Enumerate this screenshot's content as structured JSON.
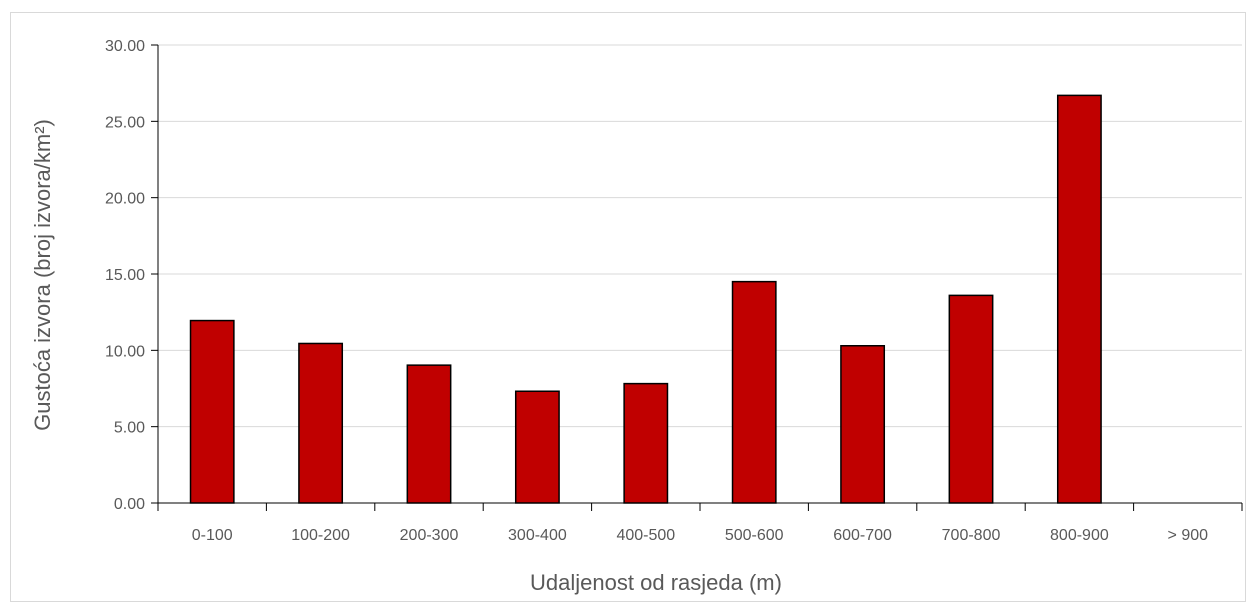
{
  "chart_data": {
    "type": "bar",
    "title": "",
    "xlabel": "Udaljenost od rasjeda (m)",
    "ylabel": "Gustoća izvora (broj izvora/km²)",
    "categories": [
      "0-100",
      "100-200",
      "200-300",
      "300-400",
      "400-500",
      "500-600",
      "600-700",
      "700-800",
      "800-900",
      "> 900"
    ],
    "values": [
      11.95,
      10.45,
      9.03,
      7.32,
      7.82,
      14.5,
      10.3,
      13.6,
      26.7,
      0
    ],
    "ylim": [
      0,
      30
    ],
    "yticks": [
      "0.00",
      "5.00",
      "10.00",
      "15.00",
      "20.00",
      "25.00",
      "30.00"
    ],
    "grid": true,
    "legend": "none",
    "colors": {
      "bar": "#c00000",
      "bar_edge": "#000000",
      "grid": "#d9d9d9",
      "axis": "#000000",
      "text": "#595959"
    }
  }
}
